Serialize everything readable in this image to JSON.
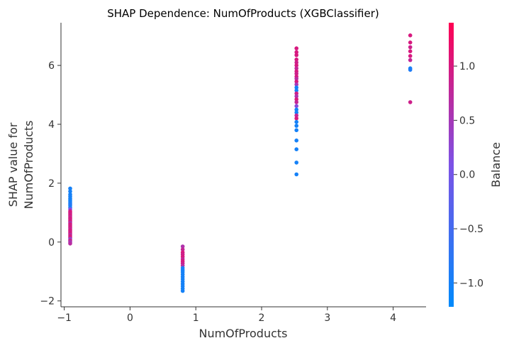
{
  "chart_data": {
    "type": "scatter",
    "title": "SHAP Dependence: NumOfProducts (XGBClassifier)",
    "xlabel": "NumOfProducts",
    "ylabel": [
      "SHAP value for",
      "NumOfProducts"
    ],
    "xlim": [
      -1.05,
      4.5
    ],
    "ylim": [
      -2.2,
      7.45
    ],
    "x_ticks": [
      -1,
      0,
      1,
      2,
      3,
      4
    ],
    "x_tick_labels": [
      "−1",
      "0",
      "1",
      "2",
      "3",
      "4"
    ],
    "y_ticks": [
      -2,
      0,
      2,
      4,
      6
    ],
    "y_tick_labels": [
      "−2",
      "0",
      "2",
      "4",
      "6"
    ],
    "colorbar": {
      "label": "Balance",
      "range": [
        -1.22,
        1.4
      ],
      "ticks": [
        -1.0,
        -0.5,
        0.0,
        0.5,
        1.0
      ],
      "tick_labels": [
        "−1.0",
        "−0.5",
        "0.0",
        "0.5",
        "1.0"
      ],
      "colors": [
        "#008afb",
        "#7c52e6",
        "#ff0052"
      ]
    },
    "grid": false,
    "series": [
      {
        "x": -0.91,
        "points": [
          {
            "y": 1.82,
            "c": -1.0
          },
          {
            "y": 1.72,
            "c": -1.0
          },
          {
            "y": 1.62,
            "c": -1.0
          },
          {
            "y": 1.55,
            "c": -1.0
          },
          {
            "y": 1.48,
            "c": -1.0
          },
          {
            "y": 1.42,
            "c": -1.0
          },
          {
            "y": 1.36,
            "c": -1.0
          },
          {
            "y": 1.3,
            "c": -0.9
          },
          {
            "y": 1.25,
            "c": -0.85
          },
          {
            "y": 1.18,
            "c": -1.0
          },
          {
            "y": 1.12,
            "c": 0.1
          },
          {
            "y": 1.05,
            "c": 0.9
          },
          {
            "y": 1.0,
            "c": 1.0
          },
          {
            "y": 0.95,
            "c": 0.9
          },
          {
            "y": 0.9,
            "c": 1.0
          },
          {
            "y": 0.85,
            "c": 0.8
          },
          {
            "y": 0.8,
            "c": 1.0
          },
          {
            "y": 0.75,
            "c": 0.9
          },
          {
            "y": 0.7,
            "c": 1.0
          },
          {
            "y": 0.65,
            "c": 0.6
          },
          {
            "y": 0.6,
            "c": 1.0
          },
          {
            "y": 0.55,
            "c": 0.9
          },
          {
            "y": 0.5,
            "c": 1.0
          },
          {
            "y": 0.45,
            "c": 0.8
          },
          {
            "y": 0.4,
            "c": 1.0
          },
          {
            "y": 0.35,
            "c": 0.9
          },
          {
            "y": 0.3,
            "c": 1.0
          },
          {
            "y": 0.25,
            "c": 0.7
          },
          {
            "y": 0.2,
            "c": 1.0
          },
          {
            "y": 0.15,
            "c": 0.9
          },
          {
            "y": 0.1,
            "c": 0.3
          },
          {
            "y": 0.05,
            "c": 0.9
          },
          {
            "y": 0.0,
            "c": 0.5
          },
          {
            "y": -0.05,
            "c": 0.7
          }
        ]
      },
      {
        "x": 0.8,
        "points": [
          {
            "y": -0.15,
            "c": 0.6
          },
          {
            "y": -0.25,
            "c": 0.8
          },
          {
            "y": -0.35,
            "c": 1.0
          },
          {
            "y": -0.42,
            "c": 0.9
          },
          {
            "y": -0.5,
            "c": 1.0
          },
          {
            "y": -0.58,
            "c": 0.8
          },
          {
            "y": -0.65,
            "c": 1.0
          },
          {
            "y": -0.72,
            "c": 0.9
          },
          {
            "y": -0.8,
            "c": 0.7
          },
          {
            "y": -0.88,
            "c": -0.9
          },
          {
            "y": -0.95,
            "c": -1.0
          },
          {
            "y": -1.02,
            "c": -1.0
          },
          {
            "y": -1.1,
            "c": -1.0
          },
          {
            "y": -1.18,
            "c": -1.0
          },
          {
            "y": -1.26,
            "c": -1.0
          },
          {
            "y": -1.34,
            "c": -1.0
          },
          {
            "y": -1.42,
            "c": -1.0
          },
          {
            "y": -1.5,
            "c": -1.0
          },
          {
            "y": -1.58,
            "c": -1.0
          },
          {
            "y": -1.66,
            "c": -1.0
          }
        ]
      },
      {
        "x": 2.53,
        "points": [
          {
            "y": 6.58,
            "c": 1.0
          },
          {
            "y": 6.45,
            "c": 1.0
          },
          {
            "y": 6.35,
            "c": 1.0
          },
          {
            "y": 6.2,
            "c": 1.0
          },
          {
            "y": 6.1,
            "c": 0.9
          },
          {
            "y": 6.0,
            "c": 1.0
          },
          {
            "y": 5.9,
            "c": 0.8
          },
          {
            "y": 5.8,
            "c": 1.0
          },
          {
            "y": 5.72,
            "c": 0.9
          },
          {
            "y": 5.62,
            "c": 1.0
          },
          {
            "y": 5.55,
            "c": 0.7
          },
          {
            "y": 5.45,
            "c": 1.0
          },
          {
            "y": 5.35,
            "c": 0.5
          },
          {
            "y": 5.25,
            "c": -1.0
          },
          {
            "y": 5.15,
            "c": -1.0
          },
          {
            "y": 5.05,
            "c": 0.9
          },
          {
            "y": 4.95,
            "c": 0.6
          },
          {
            "y": 4.85,
            "c": 1.0
          },
          {
            "y": 4.75,
            "c": 0.8
          },
          {
            "y": 4.62,
            "c": 0.2
          },
          {
            "y": 4.5,
            "c": -1.0
          },
          {
            "y": 4.4,
            "c": -1.0
          },
          {
            "y": 4.3,
            "c": 0.8
          },
          {
            "y": 4.2,
            "c": 1.0
          },
          {
            "y": 4.08,
            "c": -1.0
          },
          {
            "y": 3.95,
            "c": -1.0
          },
          {
            "y": 3.8,
            "c": -1.0
          },
          {
            "y": 3.45,
            "c": -1.0
          },
          {
            "y": 3.15,
            "c": -1.0
          },
          {
            "y": 2.7,
            "c": -1.0
          },
          {
            "y": 2.3,
            "c": -1.0
          }
        ]
      },
      {
        "x": 4.26,
        "points": [
          {
            "y": 7.02,
            "c": 1.0
          },
          {
            "y": 6.78,
            "c": 1.0
          },
          {
            "y": 6.62,
            "c": 0.9
          },
          {
            "y": 6.48,
            "c": 1.0
          },
          {
            "y": 6.32,
            "c": 1.0
          },
          {
            "y": 6.18,
            "c": 0.8
          },
          {
            "y": 5.9,
            "c": -1.0
          },
          {
            "y": 5.85,
            "c": -0.9
          },
          {
            "y": 4.75,
            "c": 0.9
          }
        ]
      }
    ]
  }
}
